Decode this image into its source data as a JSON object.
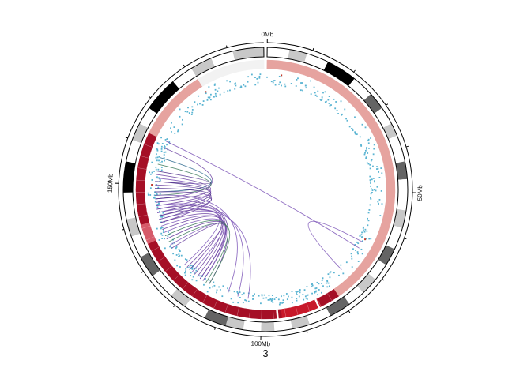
{
  "chart_data": {
    "type": "circos",
    "chromosome": "3",
    "chromosome_length_mb": 198,
    "tick_labels": [
      {
        "pos_mb": 0,
        "label": "0Mb"
      },
      {
        "pos_mb": 50,
        "label": "50Mb"
      },
      {
        "pos_mb": 100,
        "label": "100Mb"
      },
      {
        "pos_mb": 150,
        "label": "150Mb"
      }
    ],
    "minor_tick_interval_mb": 10,
    "ideogram_bands": [
      {
        "start": 0,
        "end": 5,
        "stain": "white"
      },
      {
        "start": 5,
        "end": 9,
        "stain": "lightgray"
      },
      {
        "start": 9,
        "end": 14,
        "stain": "white"
      },
      {
        "start": 14,
        "end": 21,
        "stain": "black"
      },
      {
        "start": 21,
        "end": 26,
        "stain": "white"
      },
      {
        "start": 26,
        "end": 30,
        "stain": "darkgray"
      },
      {
        "start": 30,
        "end": 34,
        "stain": "white"
      },
      {
        "start": 34,
        "end": 37,
        "stain": "lightgray"
      },
      {
        "start": 37,
        "end": 43,
        "stain": "white"
      },
      {
        "start": 43,
        "end": 47,
        "stain": "darkgray"
      },
      {
        "start": 47,
        "end": 54,
        "stain": "white"
      },
      {
        "start": 54,
        "end": 58,
        "stain": "lightgray"
      },
      {
        "start": 58,
        "end": 63,
        "stain": "white"
      },
      {
        "start": 63,
        "end": 67,
        "stain": "darkgray"
      },
      {
        "start": 67,
        "end": 71,
        "stain": "white"
      },
      {
        "start": 71,
        "end": 75,
        "stain": "lightgray"
      },
      {
        "start": 75,
        "end": 79,
        "stain": "white"
      },
      {
        "start": 79,
        "end": 84,
        "stain": "darkgray"
      },
      {
        "start": 84,
        "end": 89,
        "stain": "white"
      },
      {
        "start": 89,
        "end": 93,
        "stain": "lightgray"
      },
      {
        "start": 93,
        "end": 97,
        "stain": "white"
      },
      {
        "start": 97,
        "end": 100,
        "stain": "lightgray"
      },
      {
        "start": 100,
        "end": 104,
        "stain": "white"
      },
      {
        "start": 104,
        "end": 108,
        "stain": "lightgray"
      },
      {
        "start": 108,
        "end": 113,
        "stain": "darkgray"
      },
      {
        "start": 113,
        "end": 118,
        "stain": "white"
      },
      {
        "start": 118,
        "end": 122,
        "stain": "lightgray"
      },
      {
        "start": 122,
        "end": 128,
        "stain": "white"
      },
      {
        "start": 128,
        "end": 133,
        "stain": "darkgray"
      },
      {
        "start": 133,
        "end": 138,
        "stain": "white"
      },
      {
        "start": 138,
        "end": 142,
        "stain": "lightgray"
      },
      {
        "start": 142,
        "end": 148,
        "stain": "white"
      },
      {
        "start": 148,
        "end": 155,
        "stain": "black"
      },
      {
        "start": 155,
        "end": 160,
        "stain": "white"
      },
      {
        "start": 160,
        "end": 164,
        "stain": "lightgray"
      },
      {
        "start": 164,
        "end": 168,
        "stain": "white"
      },
      {
        "start": 168,
        "end": 176,
        "stain": "black"
      },
      {
        "start": 176,
        "end": 181,
        "stain": "white"
      },
      {
        "start": 181,
        "end": 186,
        "stain": "lightgray"
      },
      {
        "start": 186,
        "end": 191,
        "stain": "white"
      },
      {
        "start": 191,
        "end": 198,
        "stain": "lightgray"
      }
    ],
    "band_colors": {
      "white": "#ffffff",
      "lightgray": "#c8c8c8",
      "darkgray": "#646464",
      "black": "#000000"
    },
    "segment_track": [
      {
        "start": 0,
        "end": 80,
        "color": "#e6a39f"
      },
      {
        "start": 80,
        "end": 85,
        "color": "#a50f26"
      },
      {
        "start": 85,
        "end": 95,
        "color": "#c8192a"
      },
      {
        "start": 95,
        "end": 135,
        "color": "#a50f26"
      },
      {
        "start": 135,
        "end": 140,
        "color": "#d65b6a"
      },
      {
        "start": 140,
        "end": 163,
        "color": "#a50f26"
      },
      {
        "start": 163,
        "end": 181,
        "color": "#e6a39f"
      },
      {
        "start": 181,
        "end": 198,
        "color": "#f2f2f2"
      }
    ],
    "segment_gaps_mb": [
      85.5,
      96
    ],
    "point_color": "#5ab4d2",
    "arc_colors": [
      "#6a3fa0",
      "#7e57b8",
      "#4b2a8a",
      "#3d7a5a",
      "#2f6b8f"
    ],
    "links": [
      {
        "from": 163,
        "to": 67,
        "color": "#7e57b8"
      },
      {
        "from": 161,
        "to": 146,
        "color": "#6a3fa0"
      },
      {
        "from": 158,
        "to": 148,
        "color": "#2f6b8f"
      },
      {
        "from": 156,
        "to": 147,
        "color": "#3d7a5a"
      },
      {
        "from": 154,
        "to": 151,
        "color": "#4b2a8a"
      },
      {
        "from": 153,
        "to": 145,
        "color": "#6a3fa0"
      },
      {
        "from": 152,
        "to": 143,
        "color": "#7e57b8"
      },
      {
        "from": 151,
        "to": 142,
        "color": "#4b2a8a"
      },
      {
        "from": 150,
        "to": 144,
        "color": "#6a3fa0"
      },
      {
        "from": 149,
        "to": 141,
        "color": "#4b2a8a"
      },
      {
        "from": 148,
        "to": 139,
        "color": "#6a3fa0"
      },
      {
        "from": 147,
        "to": 110,
        "color": "#7e57b8"
      },
      {
        "from": 146,
        "to": 140,
        "color": "#4b2a8a"
      },
      {
        "from": 145,
        "to": 116,
        "color": "#6a3fa0"
      },
      {
        "from": 144,
        "to": 107,
        "color": "#7e57b8"
      },
      {
        "from": 143,
        "to": 118,
        "color": "#6a3fa0"
      },
      {
        "from": 142,
        "to": 104,
        "color": "#7e57b8"
      },
      {
        "from": 141,
        "to": 121,
        "color": "#6a3fa0"
      },
      {
        "from": 140,
        "to": 125,
        "color": "#7e57b8"
      },
      {
        "from": 139,
        "to": 120,
        "color": "#6a3fa0"
      },
      {
        "from": 138,
        "to": 119,
        "color": "#7e57b8"
      },
      {
        "from": 137,
        "to": 123,
        "color": "#6a3fa0"
      },
      {
        "from": 136,
        "to": 118,
        "color": "#7e57b8"
      },
      {
        "from": 135,
        "to": 117,
        "color": "#3d7a5a"
      },
      {
        "from": 134,
        "to": 119,
        "color": "#6a3fa0"
      },
      {
        "from": 133,
        "to": 116,
        "color": "#3d7a5a"
      },
      {
        "from": 132,
        "to": 122,
        "color": "#7e57b8"
      },
      {
        "from": 131,
        "to": 124,
        "color": "#6a3fa0"
      },
      {
        "from": 75,
        "to": 65,
        "color": "#7e57b8"
      }
    ]
  }
}
